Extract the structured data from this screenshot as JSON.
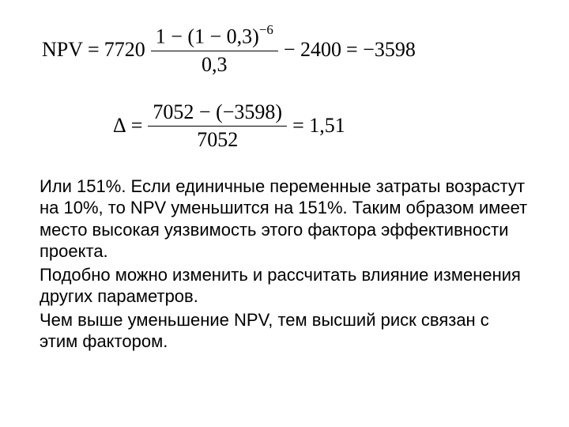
{
  "equation1": {
    "lhs": "NPV",
    "coeff": "7720",
    "frac_num": "1 − (1 − 0,3)",
    "frac_num_exp": "−6",
    "frac_den": "0,3",
    "term2": "− 2400",
    "result": "= −3598"
  },
  "equation2": {
    "lhs": "Δ",
    "frac_num": "7052 − (−3598)",
    "frac_den": "7052",
    "result": "= 1,51"
  },
  "paragraphs": {
    "p1": "Или 151%. Если единичные переменные затраты возрастут на 10%, то NPV уменьшится на 151%.  Таким образом имеет место высокая уязвимость этого фактора эффективности проекта.",
    "p2": "Подобно можно изменить и рассчитать влияние изменения других параметров.",
    "p3": "Чем выше уменьшение NPV, тем высший риск связан с этим фактором."
  },
  "style": {
    "background_color": "#ffffff",
    "text_color": "#000000",
    "eq_fontsize": 26,
    "body_fontsize": 22
  }
}
